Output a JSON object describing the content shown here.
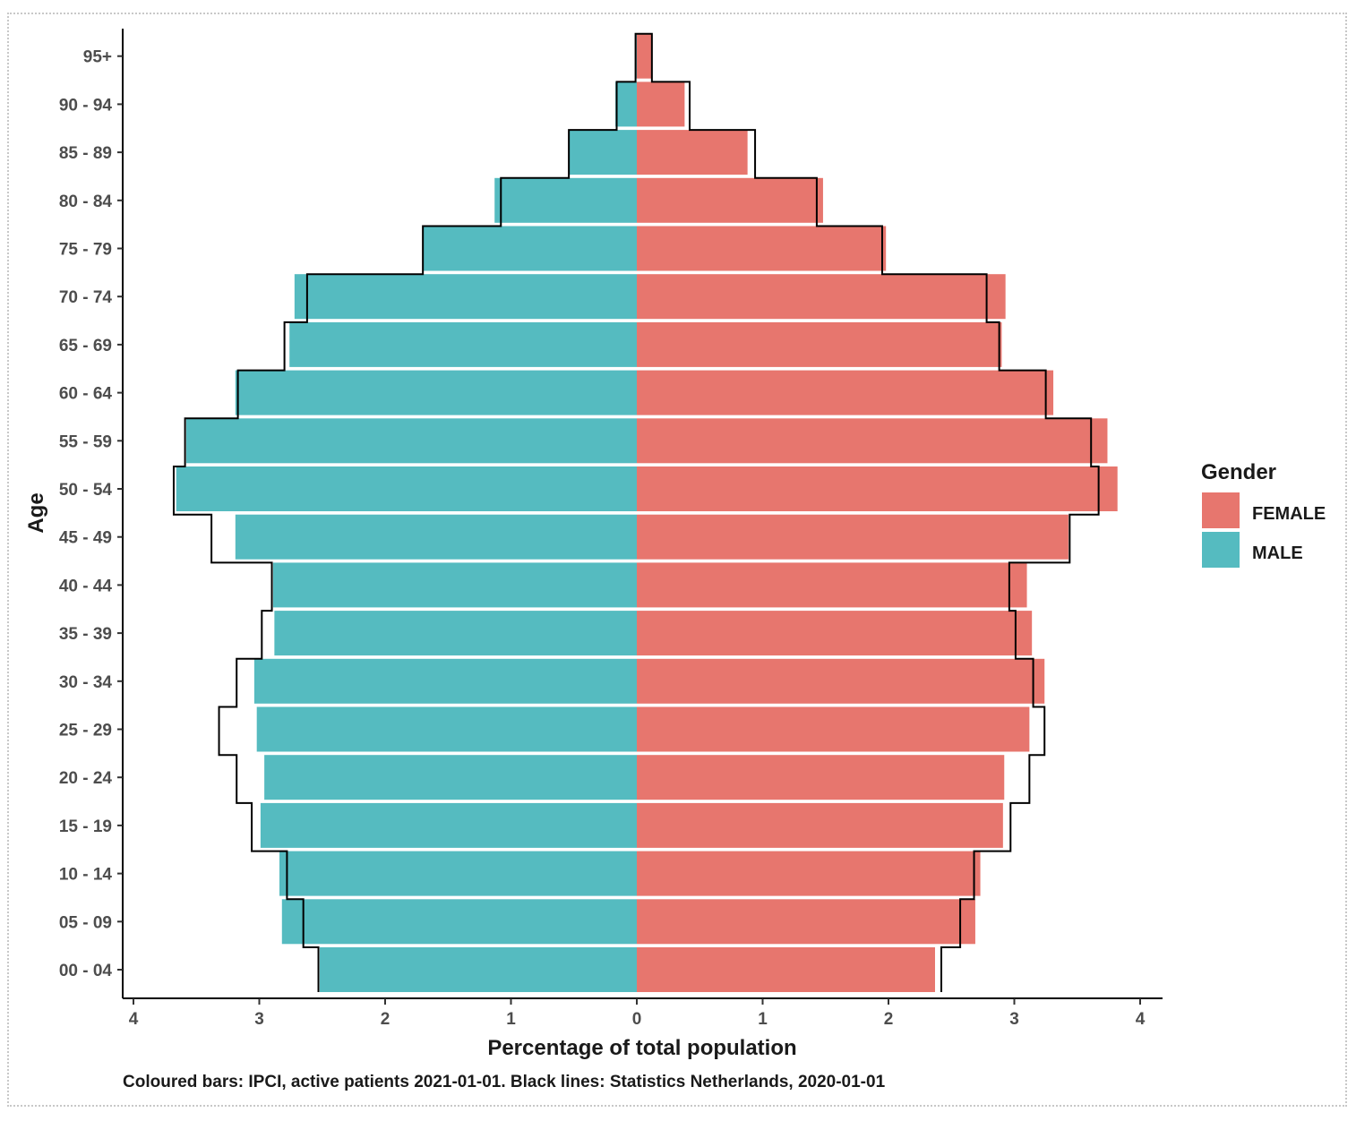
{
  "chart_data": {
    "type": "bar",
    "orientation": "horizontal-pyramid",
    "categories": [
      "00 - 04",
      "05 - 09",
      "10 - 14",
      "15 - 19",
      "20 - 24",
      "25 - 29",
      "30 - 34",
      "35 - 39",
      "40 - 44",
      "45 - 49",
      "50 - 54",
      "55 - 59",
      "60 - 64",
      "65 - 69",
      "70 - 74",
      "75 - 79",
      "80 - 84",
      "85 - 89",
      "90 - 94",
      "95+"
    ],
    "series": [
      {
        "name": "FEMALE",
        "color": "#E7766E",
        "side": "right",
        "values": [
          2.37,
          2.69,
          2.73,
          2.91,
          2.92,
          3.12,
          3.24,
          3.14,
          3.1,
          3.43,
          3.82,
          3.74,
          3.31,
          2.9,
          2.93,
          1.98,
          1.48,
          0.88,
          0.38,
          0.12
        ]
      },
      {
        "name": "MALE",
        "color": "#55BBC0",
        "side": "left",
        "values": [
          2.52,
          2.82,
          2.84,
          2.99,
          2.96,
          3.02,
          3.04,
          2.88,
          2.89,
          3.19,
          3.66,
          3.58,
          3.19,
          2.76,
          2.72,
          1.7,
          1.13,
          0.54,
          0.17,
          0.01
        ]
      }
    ],
    "reference": {
      "female": [
        2.42,
        2.57,
        2.68,
        2.97,
        3.12,
        3.24,
        3.15,
        3.01,
        2.96,
        3.44,
        3.67,
        3.61,
        3.25,
        2.88,
        2.78,
        1.95,
        1.43,
        0.94,
        0.42,
        0.12
      ],
      "male": [
        2.53,
        2.65,
        2.78,
        3.06,
        3.18,
        3.32,
        3.18,
        2.98,
        2.9,
        3.38,
        3.68,
        3.59,
        3.17,
        2.8,
        2.62,
        1.7,
        1.08,
        0.54,
        0.16,
        0.01
      ]
    },
    "xlabel": "Percentage of total population",
    "ylabel": "Age",
    "xlim": [
      -4,
      4
    ],
    "xticks": [
      -4,
      -3,
      -2,
      -1,
      0,
      1,
      2,
      3,
      4
    ],
    "xtick_labels": [
      "4",
      "3",
      "2",
      "1",
      "0",
      "1",
      "2",
      "3",
      "4"
    ],
    "legend": {
      "title": "Gender",
      "position": "right",
      "entries": [
        "FEMALE",
        "MALE"
      ]
    },
    "grid": false
  },
  "caption": "Coloured bars: IPCI, active patients 2021-01-01. Black lines: Statistics Netherlands, 2020-01-01"
}
